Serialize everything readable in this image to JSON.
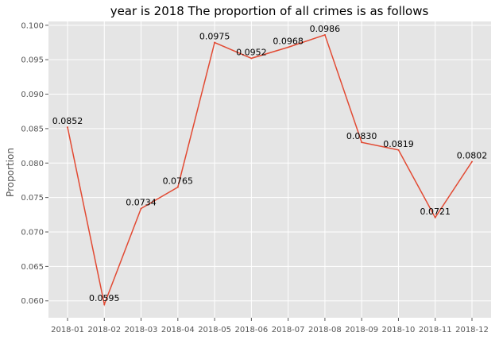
{
  "chart_data": {
    "type": "line",
    "title": "year is 2018 The proportion of all crimes is as follows",
    "xlabel": "",
    "ylabel": "Proportion",
    "categories": [
      "2018-01",
      "2018-02",
      "2018-03",
      "2018-04",
      "2018-05",
      "2018-06",
      "2018-07",
      "2018-08",
      "2018-09",
      "2018-10",
      "2018-11",
      "2018-12"
    ],
    "values": [
      0.0852,
      0.0595,
      0.0734,
      0.0765,
      0.0975,
      0.0952,
      0.0968,
      0.0986,
      0.083,
      0.0819,
      0.0721,
      0.0802
    ],
    "data_labels": [
      "0.0852",
      "0.0595",
      "0.0734",
      "0.0765",
      "0.0975",
      "0.0952",
      "0.0968",
      "0.0986",
      "0.0830",
      "0.0819",
      "0.0721",
      "0.0802"
    ],
    "yticks": [
      "0.060",
      "0.065",
      "0.070",
      "0.075",
      "0.080",
      "0.085",
      "0.090",
      "0.095",
      "0.100"
    ],
    "ylim": [
      0.05755,
      0.10055
    ],
    "grid": true,
    "style": "ggplot",
    "colors": {
      "line": "#E24A33",
      "background": "#E5E5E5",
      "grid": "#FFFFFF"
    }
  }
}
